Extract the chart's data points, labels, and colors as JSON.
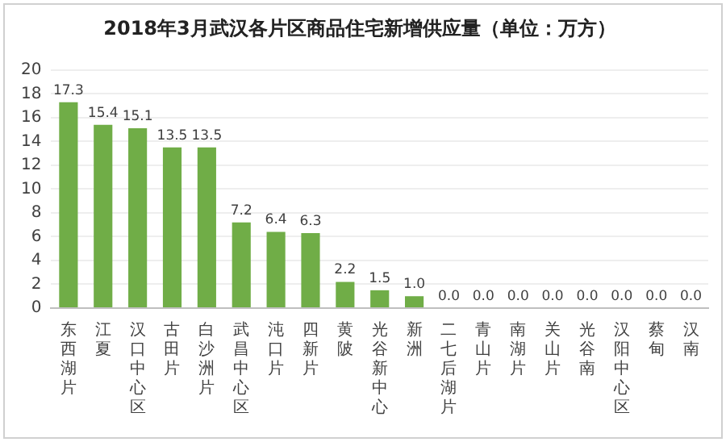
{
  "chart_data": {
    "type": "bar",
    "title": "2018年3月武汉各片区商品住宅新增供应量（单位：万方）",
    "categories": [
      "东西湖片",
      "江夏",
      "汉口中心区",
      "古田片",
      "白沙洲片",
      "武昌中心区",
      "沌口片",
      "四新片",
      "黄陂",
      "光谷新中心",
      "新洲",
      "二七后湖片",
      "青山片",
      "南湖片",
      "关山片",
      "光谷南",
      "汉阳中心区",
      "蔡甸",
      "汉南"
    ],
    "values": [
      17.3,
      15.4,
      15.1,
      13.5,
      13.5,
      7.2,
      6.4,
      6.3,
      2.2,
      1.5,
      1.0,
      0.0,
      0.0,
      0.0,
      0.0,
      0.0,
      0.0,
      0.0,
      0.0
    ],
    "value_labels": [
      "17.3",
      "15.4",
      "15.1",
      "13.5",
      "13.5",
      "7.2",
      "6.4",
      "6.3",
      "2.2",
      "1.5",
      "1.0",
      "0.0",
      "0.0",
      "0.0",
      "0.0",
      "0.0",
      "0.0",
      "0.0",
      "0.0"
    ],
    "color": "#70ad47",
    "ylim": [
      0,
      20
    ],
    "yticks": [
      0,
      2,
      4,
      6,
      8,
      10,
      12,
      14,
      16,
      18,
      20
    ],
    "grid": "y",
    "legend": false
  }
}
